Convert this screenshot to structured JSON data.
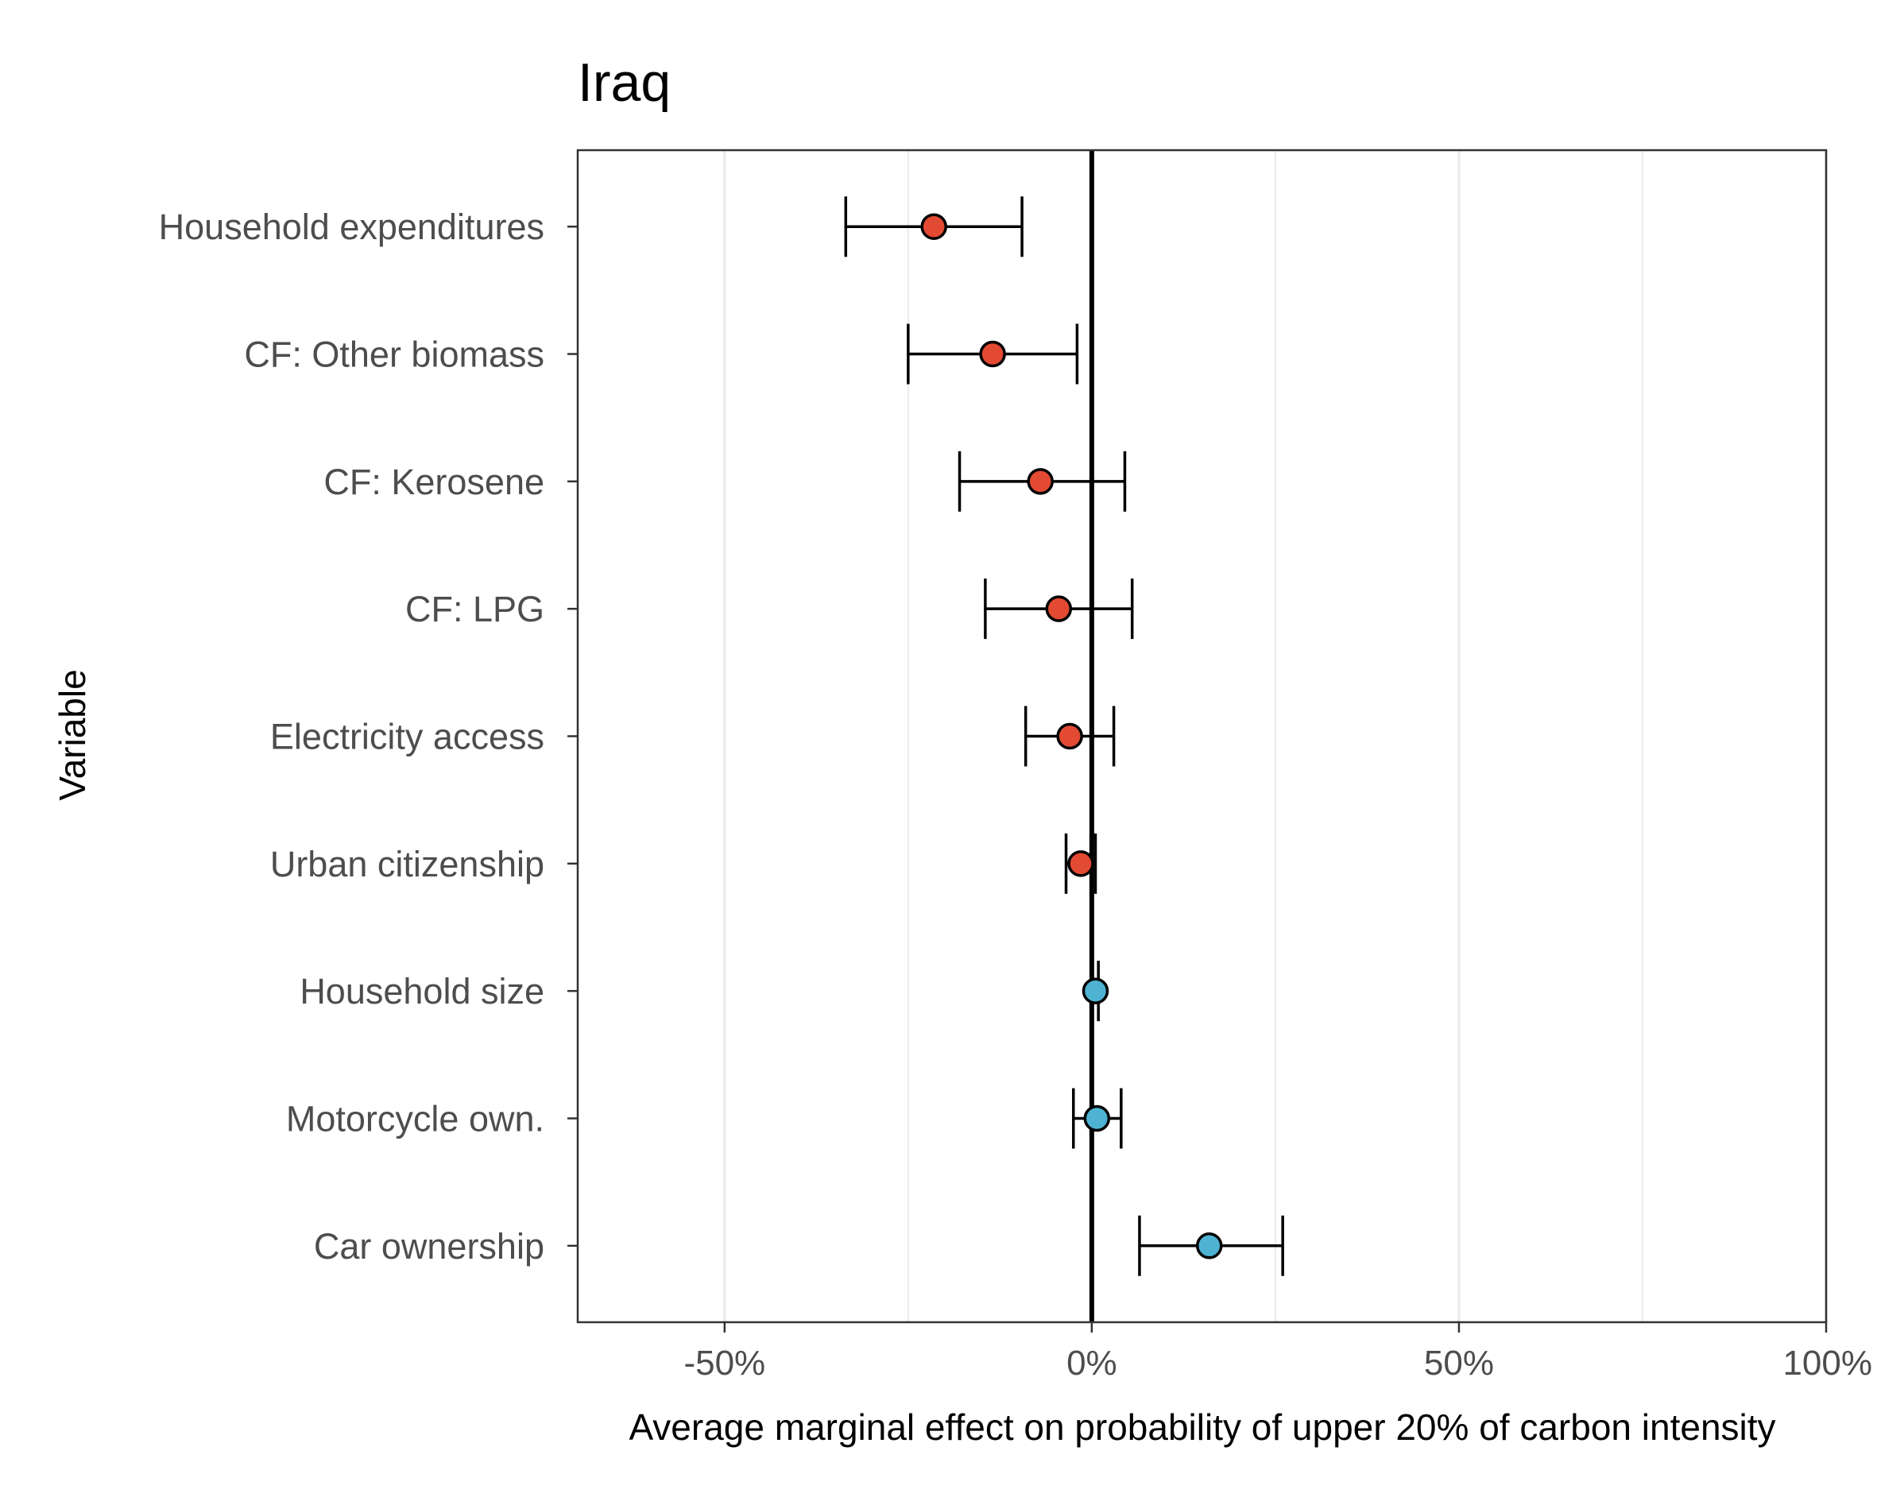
{
  "chart_data": {
    "type": "scatter",
    "title": "Iraq",
    "xlabel": "Average marginal effect on probability of upper 20% of carbon intensity",
    "ylabel": "Variable",
    "xlim": [
      -0.7,
      1.0
    ],
    "x_ticks": [
      {
        "value": -0.5,
        "label": "-50%"
      },
      {
        "value": 0,
        "label": "0%"
      },
      {
        "value": 0.5,
        "label": "50%"
      },
      {
        "value": 1.0,
        "label": "100%"
      }
    ],
    "minor_gridlines": [
      -0.25,
      0.25,
      0.75
    ],
    "grid": "vertical",
    "reference_line": 0,
    "colors": {
      "negative": "#e34a33",
      "positive": "#4eb3d3",
      "line": "#000000",
      "grid": "#ebebeb",
      "panel_border": "#333333"
    },
    "points": [
      {
        "variable": "Household expenditures",
        "estimate": -0.215,
        "lower": -0.335,
        "upper": -0.095,
        "sign": "negative"
      },
      {
        "variable": "CF: Other biomass",
        "estimate": -0.135,
        "lower": -0.25,
        "upper": -0.02,
        "sign": "negative"
      },
      {
        "variable": "CF: Kerosene",
        "estimate": -0.07,
        "lower": -0.18,
        "upper": 0.045,
        "sign": "negative"
      },
      {
        "variable": "CF: LPG",
        "estimate": -0.045,
        "lower": -0.145,
        "upper": 0.055,
        "sign": "negative"
      },
      {
        "variable": "Electricity access",
        "estimate": -0.03,
        "lower": -0.09,
        "upper": 0.03,
        "sign": "negative"
      },
      {
        "variable": "Urban citizenship",
        "estimate": -0.015,
        "lower": -0.035,
        "upper": 0.005,
        "sign": "negative"
      },
      {
        "variable": "Household size",
        "estimate": 0.005,
        "lower": 0.001,
        "upper": 0.009,
        "sign": "positive"
      },
      {
        "variable": "Motorcycle own.",
        "estimate": 0.007,
        "lower": -0.025,
        "upper": 0.04,
        "sign": "positive"
      },
      {
        "variable": "Car ownership",
        "estimate": 0.16,
        "lower": 0.065,
        "upper": 0.26,
        "sign": "positive"
      }
    ]
  }
}
